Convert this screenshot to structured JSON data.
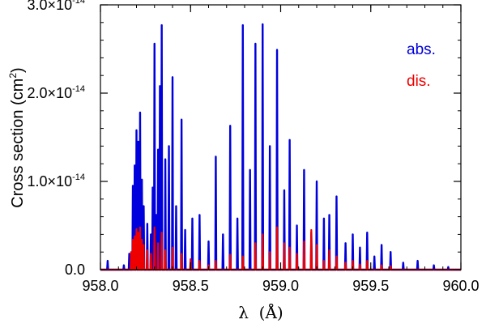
{
  "chart_data": {
    "type": "line",
    "xlabel": "λ  (Å)",
    "ylabel": "Cross section (cm²)",
    "ylabel_parts": {
      "text": "Cross section (cm",
      "sup": "2",
      "close": ")"
    },
    "xlim": [
      958.0,
      960.0
    ],
    "ylim": [
      0,
      3e-14
    ],
    "x_ticks": [
      958.0,
      958.5,
      959.0,
      959.5,
      960.0
    ],
    "x_tick_labels": [
      "958.0",
      "958.5",
      "959.0",
      "959.5",
      "960.0"
    ],
    "y_ticks": [
      0,
      1e-14,
      2e-14,
      3e-14
    ],
    "y_tick_labels": [
      {
        "mant": "0.0",
        "exp": ""
      },
      {
        "mant": "1.0×10",
        "exp": "-14"
      },
      {
        "mant": "2.0×10",
        "exp": "-14"
      },
      {
        "mant": "3.0×10",
        "exp": "-14"
      }
    ],
    "legend_position": "top-right",
    "grid": false,
    "series": [
      {
        "name": "abs.",
        "color": "#0000dd",
        "peaks": [
          [
            958.04,
            0.1
          ],
          [
            958.13,
            0.05
          ],
          [
            958.16,
            0.18
          ],
          [
            958.18,
            0.95
          ],
          [
            958.19,
            1.18
          ],
          [
            958.2,
            1.58
          ],
          [
            958.21,
            1.45
          ],
          [
            958.22,
            1.78
          ],
          [
            958.23,
            1.02
          ],
          [
            958.24,
            0.72
          ],
          [
            958.26,
            0.52
          ],
          [
            958.28,
            0.4
          ],
          [
            958.29,
            0.93
          ],
          [
            958.3,
            2.56
          ],
          [
            958.31,
            0.62
          ],
          [
            958.32,
            1.36
          ],
          [
            958.33,
            2.08
          ],
          [
            958.34,
            2.77
          ],
          [
            958.36,
            1.25
          ],
          [
            958.38,
            1.4
          ],
          [
            958.4,
            2.18
          ],
          [
            958.42,
            0.72
          ],
          [
            958.45,
            1.7
          ],
          [
            958.47,
            0.45
          ],
          [
            958.51,
            0.58
          ],
          [
            958.55,
            0.62
          ],
          [
            958.6,
            0.32
          ],
          [
            958.64,
            1.28
          ],
          [
            958.68,
            0.4
          ],
          [
            958.72,
            1.63
          ],
          [
            958.76,
            0.58
          ],
          [
            958.79,
            2.77
          ],
          [
            958.83,
            1.13
          ],
          [
            958.86,
            2.56
          ],
          [
            958.9,
            2.78
          ],
          [
            958.94,
            1.4
          ],
          [
            958.98,
            2.49
          ],
          [
            959.02,
            0.9
          ],
          [
            959.05,
            1.47
          ],
          [
            959.09,
            0.5
          ],
          [
            959.13,
            1.13
          ],
          [
            959.17,
            0.42
          ],
          [
            959.2,
            1.0
          ],
          [
            959.24,
            0.58
          ],
          [
            959.27,
            0.62
          ],
          [
            959.31,
            0.83
          ],
          [
            959.36,
            0.3
          ],
          [
            959.4,
            0.4
          ],
          [
            959.44,
            0.25
          ],
          [
            959.48,
            0.42
          ],
          [
            959.52,
            0.15
          ],
          [
            959.56,
            0.28
          ],
          [
            959.61,
            0.2
          ],
          [
            959.68,
            0.08
          ],
          [
            959.76,
            0.1
          ],
          [
            959.85,
            0.05
          ],
          [
            959.93,
            0.03
          ]
        ]
      },
      {
        "name": "dis.",
        "color": "#ee0000",
        "peaks": [
          [
            958.17,
            0.2
          ],
          [
            958.18,
            0.34
          ],
          [
            958.19,
            0.38
          ],
          [
            958.2,
            0.46
          ],
          [
            958.21,
            0.42
          ],
          [
            958.22,
            0.48
          ],
          [
            958.23,
            0.34
          ],
          [
            958.24,
            0.28
          ],
          [
            958.26,
            0.22
          ],
          [
            958.28,
            0.18
          ],
          [
            958.3,
            0.48
          ],
          [
            958.32,
            0.3
          ],
          [
            958.34,
            0.42
          ],
          [
            958.36,
            0.22
          ],
          [
            958.4,
            0.25
          ],
          [
            958.45,
            0.18
          ],
          [
            958.5,
            0.12
          ],
          [
            958.55,
            0.1
          ],
          [
            958.6,
            0.05
          ],
          [
            958.64,
            0.1
          ],
          [
            958.72,
            0.17
          ],
          [
            958.79,
            0.15
          ],
          [
            958.86,
            0.3
          ],
          [
            958.9,
            0.4
          ],
          [
            958.94,
            0.2
          ],
          [
            958.98,
            0.48
          ],
          [
            959.02,
            0.3
          ],
          [
            959.05,
            0.25
          ],
          [
            959.09,
            0.18
          ],
          [
            959.13,
            0.32
          ],
          [
            959.17,
            0.45
          ],
          [
            959.2,
            0.28
          ],
          [
            959.24,
            0.1
          ],
          [
            959.27,
            0.22
          ],
          [
            959.31,
            0.15
          ],
          [
            959.36,
            0.08
          ],
          [
            959.4,
            0.1
          ],
          [
            959.44,
            0.06
          ],
          [
            959.48,
            0.1
          ],
          [
            959.56,
            0.05
          ],
          [
            959.61,
            0.04
          ]
        ]
      }
    ]
  }
}
